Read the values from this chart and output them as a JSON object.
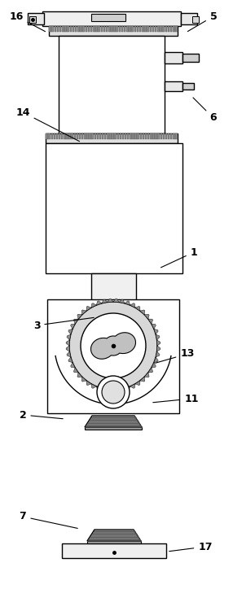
{
  "bg_color": "#ffffff",
  "line_color": "#000000",
  "figsize": [
    2.86,
    7.24
  ],
  "dpi": 100,
  "labels_data": [
    [
      16,
      20,
      20,
      58,
      40
    ],
    [
      5,
      262,
      20,
      228,
      40
    ],
    [
      14,
      28,
      138,
      100,
      175
    ],
    [
      6,
      262,
      145,
      235,
      118
    ],
    [
      1,
      238,
      310,
      195,
      330
    ],
    [
      3,
      45,
      400,
      118,
      390
    ],
    [
      13,
      230,
      435,
      188,
      447
    ],
    [
      11,
      235,
      490,
      185,
      495
    ],
    [
      2,
      28,
      510,
      80,
      515
    ],
    [
      7,
      28,
      635,
      98,
      650
    ],
    [
      17,
      252,
      672,
      205,
      678
    ]
  ]
}
